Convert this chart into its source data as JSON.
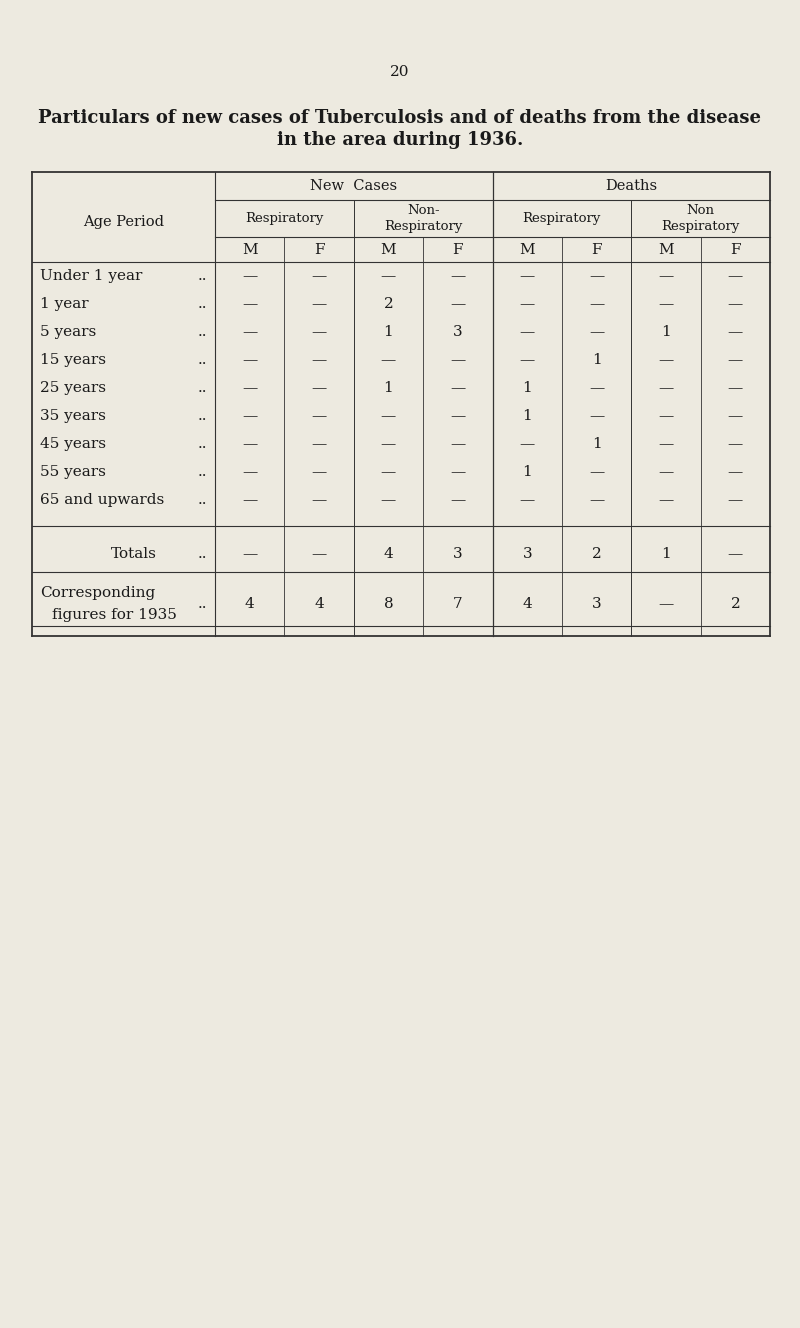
{
  "page_number": "20",
  "title_line1": "Particulars of new cases of Tuberculosis and of deaths from the disease",
  "title_line2": "in the area during 1936.",
  "background_color": "#edeae0",
  "text_color": "#1a1a1a",
  "age_rows": [
    "Under 1 year",
    "1 year",
    "5 years",
    "15 years",
    "25 years",
    "35 years",
    "45 years",
    "55 years",
    "65 and upwards"
  ],
  "table_data": [
    [
      "—",
      "—",
      "—",
      "—",
      "—",
      "—",
      "—",
      "—"
    ],
    [
      "—",
      "—",
      "2",
      "—",
      "—",
      "—",
      "—",
      "—"
    ],
    [
      "—",
      "—",
      "1",
      "3",
      "—",
      "—",
      "1",
      "—"
    ],
    [
      "—",
      "—",
      "—",
      "—",
      "—",
      "1",
      "—",
      "—"
    ],
    [
      "—",
      "—",
      "1",
      "—",
      "1",
      "—",
      "—",
      "—"
    ],
    [
      "—",
      "—",
      "—",
      "—",
      "1",
      "—",
      "—",
      "—"
    ],
    [
      "—",
      "—",
      "—",
      "—",
      "—",
      "1",
      "—",
      "—"
    ],
    [
      "—",
      "—",
      "—",
      "—",
      "1",
      "—",
      "—",
      "—"
    ],
    [
      "—",
      "—",
      "—",
      "—",
      "—",
      "—",
      "—",
      "—"
    ]
  ],
  "totals_data": [
    "—",
    "—",
    "4",
    "3",
    "3",
    "2",
    "1",
    "—"
  ],
  "corresponding_data": [
    "4",
    "4",
    "8",
    "7",
    "4",
    "3",
    "—",
    "2"
  ]
}
